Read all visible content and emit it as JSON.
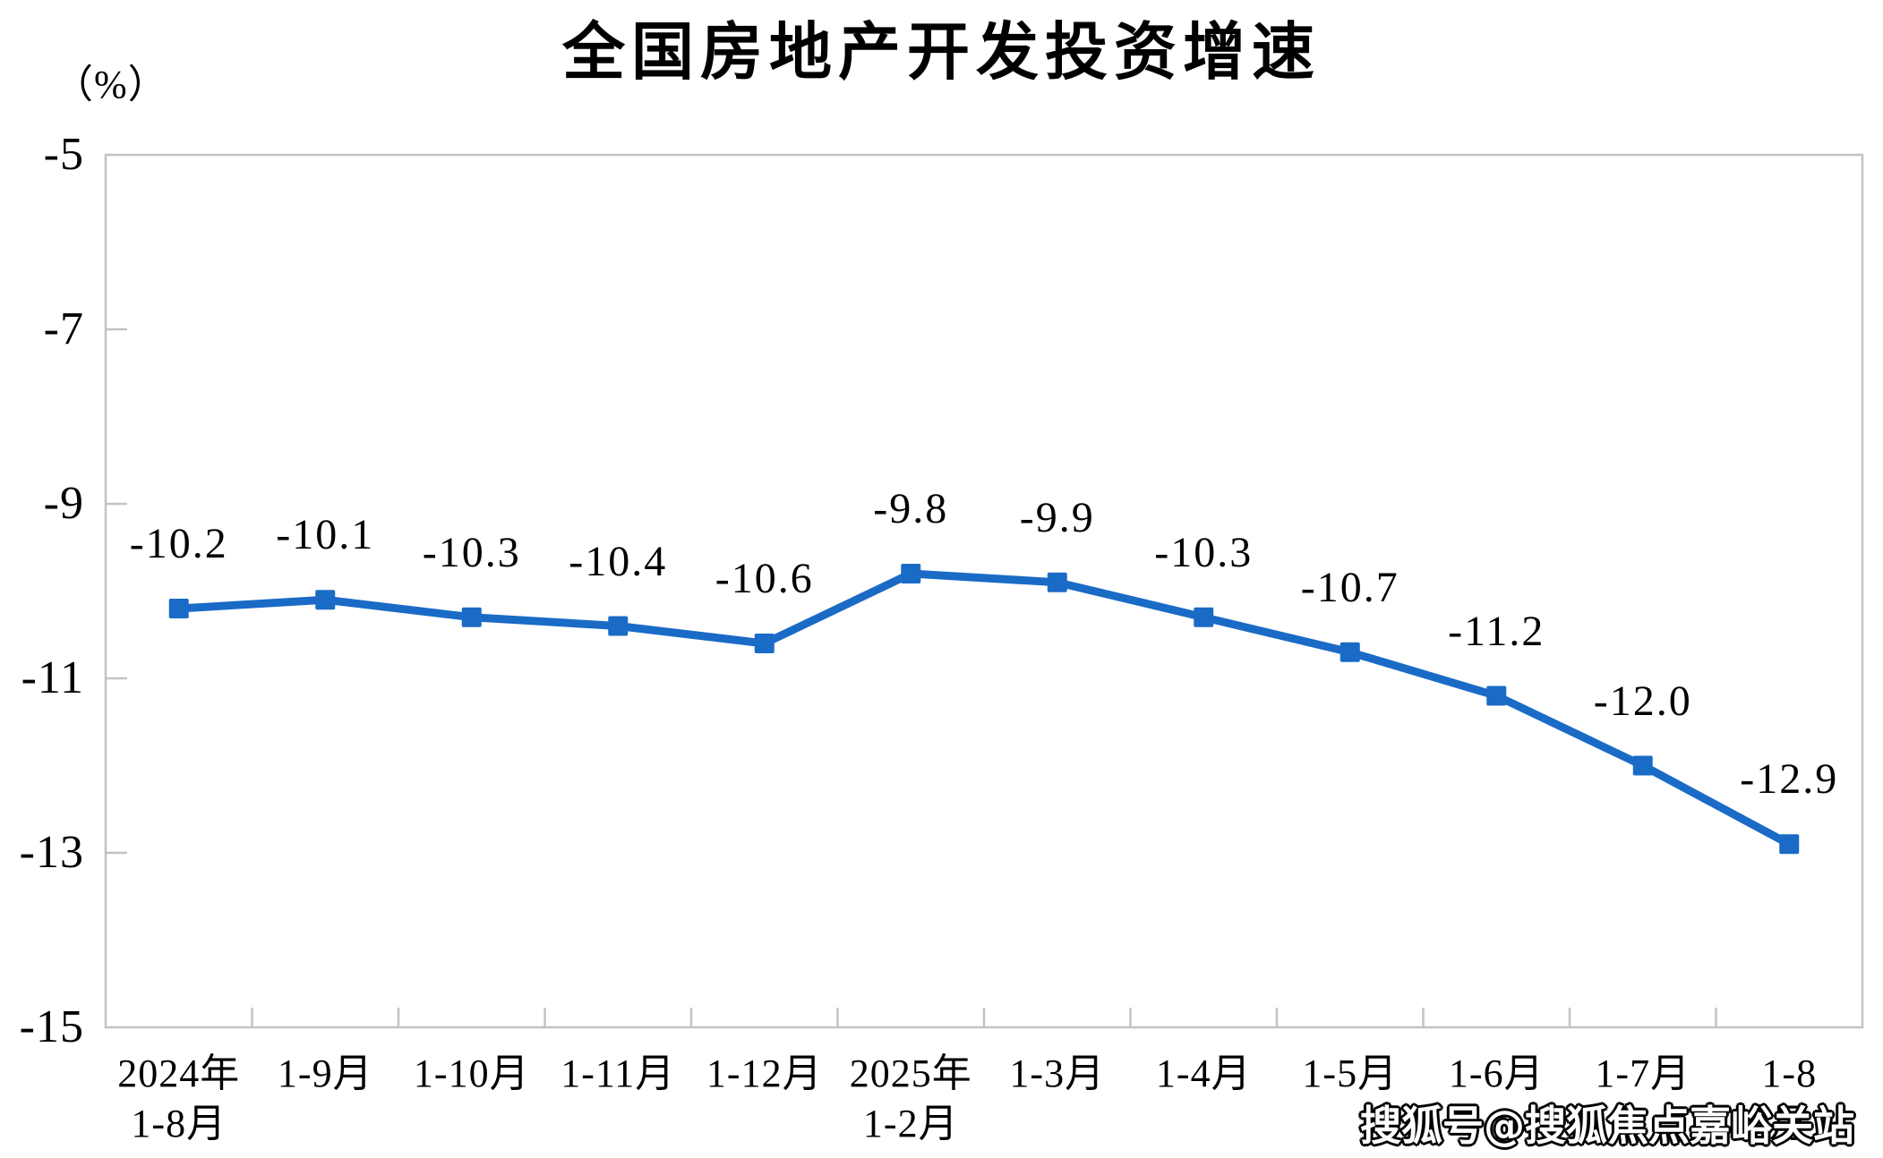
{
  "page": {
    "watermark": "搜狐号@搜狐焦点嘉峪关站"
  },
  "chart_data": {
    "type": "line",
    "title": "全国房地产开发投资增速",
    "unit_label": "（%）",
    "categories": [
      "2024年\n1-8月",
      "1-9月",
      "1-10月",
      "1-11月",
      "1-12月",
      "2025年\n1-2月",
      "1-3月",
      "1-4月",
      "1-5月",
      "1-6月",
      "1-7月",
      "1-8月"
    ],
    "series": [
      {
        "name": "全国房地产开发投资增速",
        "values": [
          -10.2,
          -10.1,
          -10.3,
          -10.4,
          -10.6,
          -9.8,
          -9.9,
          -10.3,
          -10.7,
          -11.2,
          -12.0,
          -12.9
        ],
        "labels": [
          "-10.2",
          "-10.1",
          "-10.3",
          "-10.4",
          "-10.6",
          "-9.8",
          "-9.9",
          "-10.3",
          "-10.7",
          "-11.2",
          "-12.0",
          "-12.9"
        ]
      }
    ],
    "ylim": [
      -15,
      -5
    ],
    "ytick_labels": [
      "-5",
      "-7",
      "-9",
      "-11",
      "-13",
      "-15"
    ],
    "ytick_values": [
      -5,
      -7,
      -9,
      -11,
      -13,
      -15
    ],
    "xlabel": "",
    "ylabel": "",
    "grid": "off",
    "legend": "none",
    "line_color": "#1a6bc6",
    "marker": "square",
    "axis_color": "#c2c2c2",
    "text_color": "#000000"
  }
}
